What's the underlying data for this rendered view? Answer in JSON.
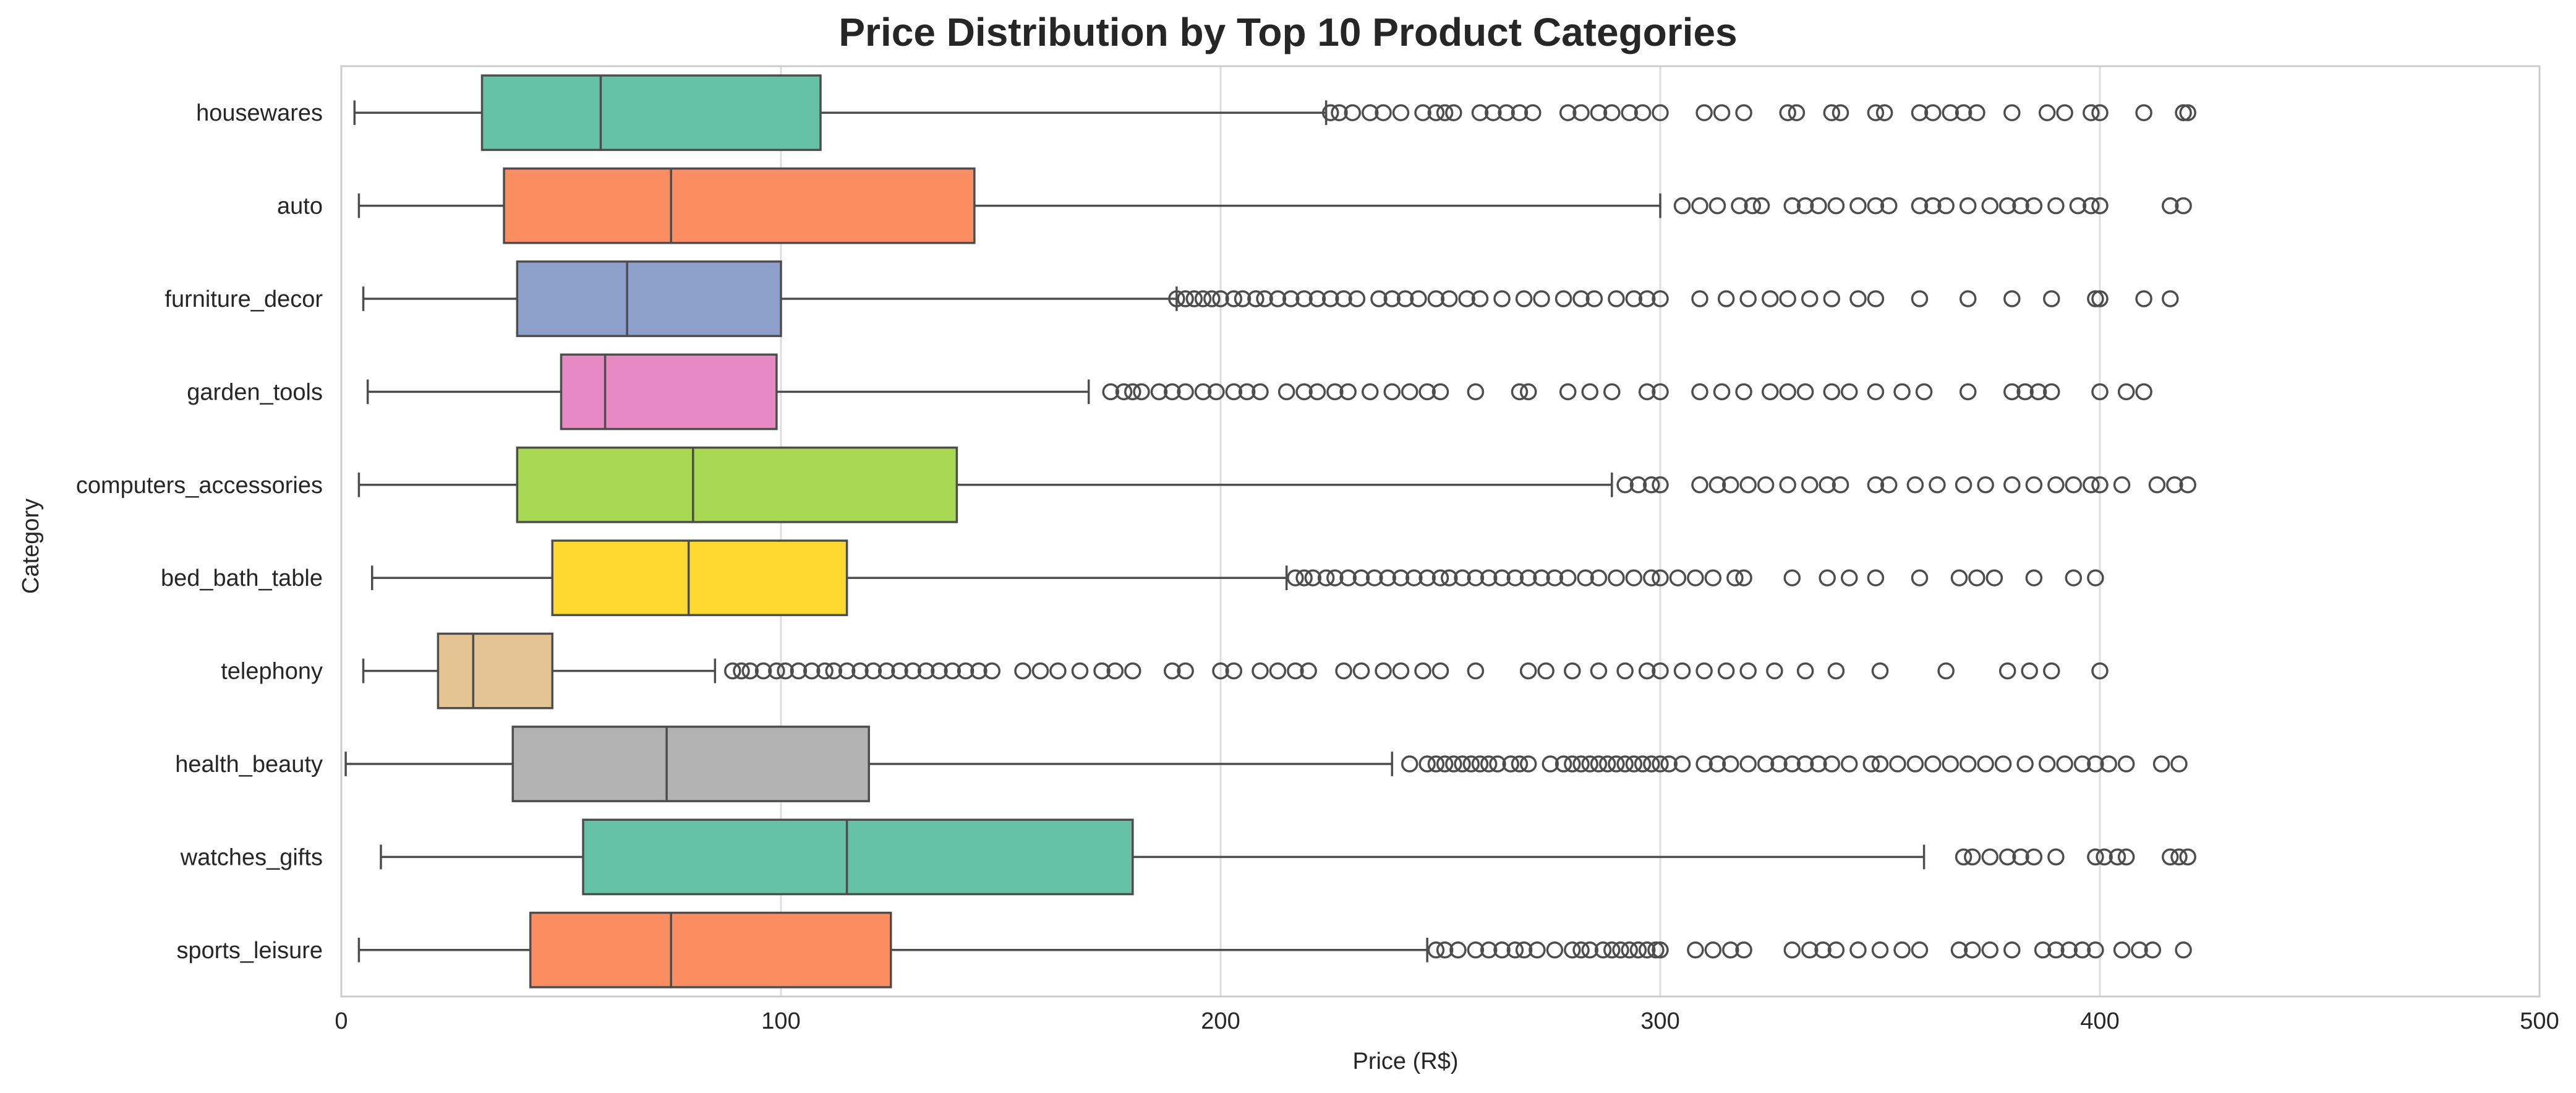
{
  "chart_data": {
    "type": "boxplot",
    "orientation": "horizontal",
    "title": "Price Distribution by Top 10 Product Categories",
    "xlabel": "Price (R$)",
    "ylabel": "Category",
    "xlim": [
      0,
      500
    ],
    "xticks": [
      0,
      100,
      200,
      300,
      400,
      500
    ],
    "grid": "vertical",
    "legend": "none",
    "series": [
      {
        "category": "housewares",
        "color": "#66c2a5",
        "whisker_low": 3,
        "q1": 32,
        "median": 59,
        "q3": 109,
        "whisker_high": 224,
        "outliers": [
          225,
          227,
          230,
          234,
          237,
          241,
          246,
          249,
          251,
          253,
          259,
          262,
          265,
          268,
          271,
          279,
          282,
          286,
          289,
          293,
          296,
          300,
          310,
          314,
          319,
          329,
          331,
          339,
          341,
          349,
          351,
          359,
          362,
          366,
          369,
          372,
          380,
          388,
          392,
          398,
          400,
          410,
          419,
          420
        ]
      },
      {
        "category": "auto",
        "color": "#fc8d62",
        "whisker_low": 4,
        "q1": 37,
        "median": 75,
        "q3": 144,
        "whisker_high": 300,
        "outliers": [
          305,
          309,
          313,
          318,
          321,
          323,
          330,
          333,
          336,
          340,
          345,
          349,
          352,
          359,
          362,
          365,
          370,
          375,
          379,
          382,
          385,
          390,
          395,
          398,
          400,
          416,
          419
        ]
      },
      {
        "category": "furniture_decor",
        "color": "#8da0cb",
        "whisker_low": 5,
        "q1": 40,
        "median": 65,
        "q3": 100,
        "whisker_high": 190,
        "outliers": [
          190,
          192,
          194,
          196,
          198,
          200,
          203,
          205,
          208,
          210,
          213,
          216,
          219,
          222,
          225,
          228,
          231,
          236,
          239,
          242,
          245,
          249,
          252,
          256,
          259,
          264,
          269,
          273,
          278,
          282,
          285,
          290,
          294,
          297,
          300,
          309,
          315,
          320,
          325,
          329,
          334,
          339,
          345,
          349,
          359,
          370,
          380,
          389,
          399,
          400,
          410,
          416
        ]
      },
      {
        "category": "garden_tools",
        "color": "#e78ac3",
        "whisker_low": 6,
        "q1": 50,
        "median": 60,
        "q3": 99,
        "whisker_high": 170,
        "outliers": [
          175,
          178,
          180,
          182,
          186,
          189,
          192,
          196,
          199,
          203,
          206,
          209,
          215,
          219,
          222,
          226,
          229,
          234,
          239,
          243,
          247,
          250,
          258,
          268,
          270,
          279,
          284,
          289,
          297,
          300,
          309,
          314,
          319,
          325,
          329,
          333,
          339,
          343,
          349,
          355,
          360,
          370,
          380,
          383,
          386,
          389,
          400,
          406,
          410
        ]
      },
      {
        "category": "computers_accessories",
        "color": "#a6d854",
        "whisker_low": 4,
        "q1": 40,
        "median": 80,
        "q3": 140,
        "whisker_high": 289,
        "outliers": [
          292,
          295,
          298,
          300,
          309,
          313,
          316,
          320,
          324,
          329,
          334,
          338,
          341,
          349,
          352,
          358,
          363,
          369,
          374,
          380,
          385,
          390,
          394,
          398,
          400,
          405,
          413,
          417,
          420
        ]
      },
      {
        "category": "bed_bath_table",
        "color": "#ffd92f",
        "whisker_low": 7,
        "q1": 48,
        "median": 79,
        "q3": 115,
        "whisker_high": 215,
        "outliers": [
          217,
          219,
          221,
          224,
          226,
          229,
          232,
          235,
          238,
          241,
          244,
          247,
          250,
          252,
          255,
          258,
          261,
          264,
          267,
          270,
          273,
          276,
          279,
          283,
          286,
          290,
          294,
          298,
          300,
          304,
          308,
          312,
          317,
          319,
          330,
          338,
          343,
          349,
          359,
          368,
          372,
          376,
          385,
          394,
          399
        ]
      },
      {
        "category": "telephony",
        "color": "#e5c494",
        "whisker_low": 5,
        "q1": 22,
        "median": 30,
        "q3": 48,
        "whisker_high": 85,
        "outliers": [
          89,
          91,
          93,
          96,
          99,
          101,
          104,
          107,
          110,
          112,
          115,
          118,
          121,
          124,
          127,
          130,
          133,
          136,
          139,
          142,
          145,
          148,
          155,
          159,
          163,
          168,
          173,
          176,
          180,
          189,
          192,
          200,
          203,
          209,
          213,
          217,
          220,
          228,
          232,
          237,
          241,
          246,
          250,
          258,
          270,
          274,
          280,
          286,
          292,
          297,
          300,
          305,
          310,
          315,
          320,
          326,
          333,
          340,
          350,
          365,
          379,
          384,
          389,
          400
        ]
      },
      {
        "category": "health_beauty",
        "color": "#b3b3b3",
        "whisker_low": 1,
        "q1": 39,
        "median": 74,
        "q3": 120,
        "whisker_high": 239,
        "outliers": [
          243,
          247,
          249,
          251,
          253,
          255,
          257,
          259,
          261,
          263,
          266,
          268,
          270,
          275,
          278,
          280,
          282,
          284,
          286,
          288,
          290,
          292,
          294,
          296,
          298,
          300,
          302,
          305,
          310,
          313,
          316,
          320,
          324,
          327,
          330,
          333,
          336,
          339,
          343,
          348,
          350,
          354,
          358,
          362,
          366,
          370,
          374,
          378,
          383,
          388,
          392,
          396,
          399,
          402,
          406,
          414,
          418
        ]
      },
      {
        "category": "watches_gifts",
        "color": "#66c2a5",
        "whisker_low": 9,
        "q1": 55,
        "median": 115,
        "q3": 180,
        "whisker_high": 360,
        "outliers": [
          369,
          371,
          375,
          379,
          382,
          385,
          390,
          399,
          401,
          404,
          406,
          416,
          418,
          420
        ]
      },
      {
        "category": "sports_leisure",
        "color": "#fc8d62",
        "whisker_low": 4,
        "q1": 43,
        "median": 75,
        "q3": 125,
        "whisker_high": 247,
        "outliers": [
          249,
          251,
          254,
          258,
          261,
          264,
          267,
          269,
          272,
          276,
          280,
          282,
          284,
          287,
          289,
          291,
          293,
          295,
          297,
          299,
          300,
          308,
          312,
          316,
          319,
          330,
          334,
          337,
          340,
          345,
          350,
          355,
          359,
          368,
          371,
          375,
          380,
          387,
          390,
          393,
          396,
          399,
          405,
          409,
          412,
          419
        ]
      }
    ]
  }
}
